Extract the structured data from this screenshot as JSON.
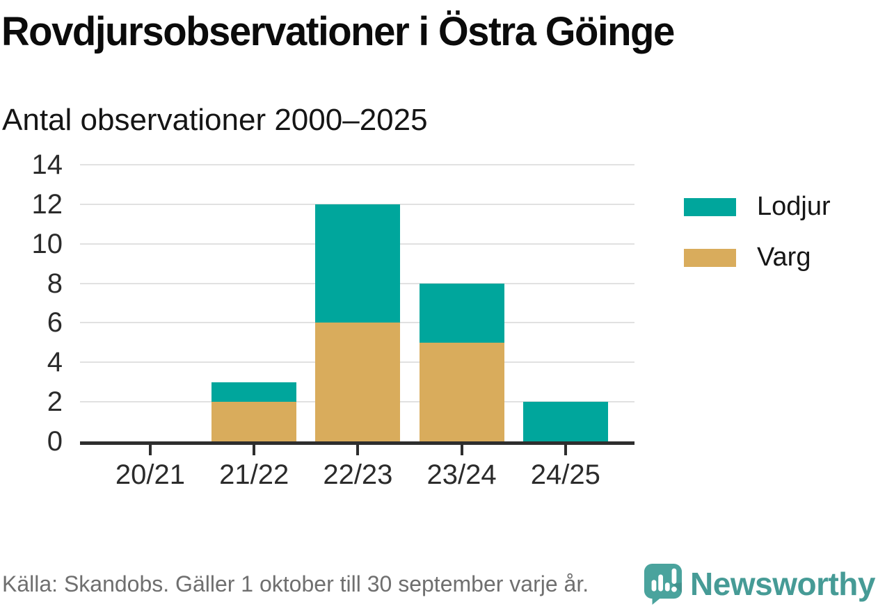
{
  "header": {
    "title": "Rovdjursobservationer i Östra Göinge",
    "subtitle": "Antal observationer 2000–2025"
  },
  "chart_data": {
    "type": "bar",
    "stacked": true,
    "title": "Rovdjursobservationer i Östra Göinge",
    "subtitle": "Antal observationer 2000–2025",
    "categories": [
      "20/21",
      "21/22",
      "22/23",
      "23/24",
      "24/25"
    ],
    "series": [
      {
        "name": "Lodjur",
        "color": "#00a69c",
        "values": [
          0,
          1,
          6,
          3,
          2
        ]
      },
      {
        "name": "Varg",
        "color": "#d9ac5c",
        "values": [
          0,
          2,
          6,
          5,
          0
        ]
      }
    ],
    "totals": [
      0,
      3,
      12,
      8,
      2
    ],
    "xlabel": "",
    "ylabel": "",
    "ylim": [
      0,
      14
    ],
    "ytick_step": 2,
    "yticks": [
      0,
      2,
      4,
      6,
      8,
      10,
      12,
      14
    ],
    "grid": true,
    "legend_position": "right"
  },
  "footer": {
    "source": "Källa: Skandobs. Gäller 1 oktober till 30 september varje år.",
    "brand": "Newsworthy"
  },
  "icons": {
    "logo": "newsworthy-speech-bubble-chart-icon"
  },
  "colors": {
    "lodjur": "#00a69c",
    "varg": "#d9ac5c",
    "axis": "#2e2e2e",
    "grid": "#e1e1e1",
    "brand": "#469b96",
    "muted_text": "#6f6f6f"
  }
}
